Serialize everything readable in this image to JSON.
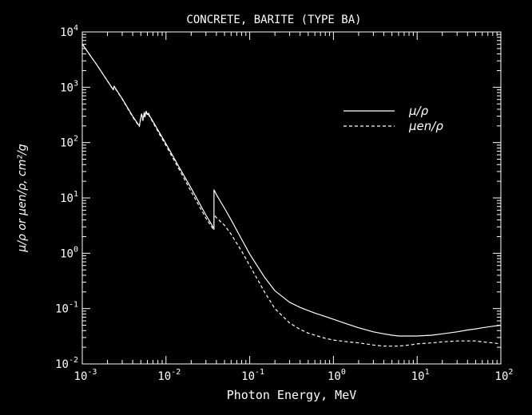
{
  "chart_data": {
    "type": "line",
    "title": "CONCRETE, BARITE (TYPE BA)",
    "xlabel": "Photon Energy, MeV",
    "ylabel": "μ/ρ or μen/ρ, cm²/g",
    "xscale": "log",
    "yscale": "log",
    "xlim": [
      0.001,
      100
    ],
    "ylim": [
      0.01,
      10000
    ],
    "grid": false,
    "legend": "top-right",
    "x_ticks": [
      {
        "value": 0.001,
        "base": "10",
        "exp": "-3"
      },
      {
        "value": 0.01,
        "base": "10",
        "exp": "-2"
      },
      {
        "value": 0.1,
        "base": "10",
        "exp": "-1"
      },
      {
        "value": 1,
        "base": "10",
        "exp": "0"
      },
      {
        "value": 10,
        "base": "10",
        "exp": "1"
      },
      {
        "value": 100,
        "base": "10",
        "exp": "2"
      }
    ],
    "y_ticks": [
      {
        "value": 0.01,
        "base": "10",
        "exp": "-2"
      },
      {
        "value": 0.1,
        "base": "10",
        "exp": "-1"
      },
      {
        "value": 1,
        "base": "10",
        "exp": "0"
      },
      {
        "value": 10,
        "base": "10",
        "exp": "1"
      },
      {
        "value": 100,
        "base": "10",
        "exp": "2"
      },
      {
        "value": 1000,
        "base": "10",
        "exp": "3"
      },
      {
        "value": 10000,
        "base": "10",
        "exp": "4"
      }
    ],
    "series": [
      {
        "name": "μ/ρ",
        "dash": "solid",
        "x": [
          0.001,
          0.0015,
          0.002,
          0.00235,
          0.0024,
          0.0025,
          0.003,
          0.004,
          0.0048,
          0.0051,
          0.0053,
          0.0055,
          0.0056,
          0.0058,
          0.006,
          0.0062,
          0.0064,
          0.0066,
          0.0068,
          0.008,
          0.01,
          0.015,
          0.02,
          0.03,
          0.03744,
          0.03745,
          0.04,
          0.05,
          0.06,
          0.08,
          0.1,
          0.15,
          0.2,
          0.3,
          0.4,
          0.5,
          0.6,
          0.8,
          1,
          1.5,
          2,
          3,
          4,
          5,
          6,
          8,
          10,
          15,
          20,
          30,
          40,
          50,
          60,
          80,
          100
        ],
        "y": [
          6000,
          2500,
          1300,
          900,
          1050,
          950,
          620,
          300,
          200,
          330,
          260,
          350,
          300,
          370,
          320,
          340,
          300,
          280,
          260,
          170,
          95,
          32,
          15,
          4.9,
          2.8,
          14,
          11.5,
          6.5,
          4.0,
          1.8,
          0.97,
          0.37,
          0.21,
          0.13,
          0.105,
          0.092,
          0.083,
          0.072,
          0.064,
          0.052,
          0.045,
          0.038,
          0.035,
          0.033,
          0.032,
          0.032,
          0.032,
          0.033,
          0.035,
          0.038,
          0.041,
          0.043,
          0.045,
          0.048,
          0.05
        ]
      },
      {
        "name": "μen/ρ",
        "dash": "dashed",
        "x": [
          0.001,
          0.0015,
          0.002,
          0.00235,
          0.0024,
          0.0025,
          0.003,
          0.004,
          0.0048,
          0.0051,
          0.0053,
          0.0055,
          0.0056,
          0.0058,
          0.006,
          0.0062,
          0.0064,
          0.0066,
          0.0068,
          0.008,
          0.01,
          0.015,
          0.02,
          0.03,
          0.03744,
          0.03745,
          0.04,
          0.05,
          0.06,
          0.08,
          0.1,
          0.15,
          0.2,
          0.3,
          0.4,
          0.5,
          0.6,
          0.8,
          1,
          1.5,
          2,
          3,
          4,
          5,
          6,
          8,
          10,
          15,
          20,
          30,
          40,
          50,
          60,
          80,
          100
        ],
        "y": [
          6000,
          2500,
          1300,
          890,
          1030,
          930,
          610,
          290,
          195,
          320,
          250,
          335,
          290,
          355,
          305,
          320,
          290,
          270,
          250,
          160,
          88,
          29,
          13,
          4.3,
          2.6,
          5.0,
          4.4,
          3.2,
          2.2,
          1.1,
          0.6,
          0.2,
          0.1,
          0.055,
          0.042,
          0.036,
          0.033,
          0.029,
          0.027,
          0.025,
          0.024,
          0.022,
          0.021,
          0.021,
          0.021,
          0.022,
          0.023,
          0.024,
          0.025,
          0.026,
          0.026,
          0.026,
          0.025,
          0.024,
          0.023
        ]
      }
    ]
  }
}
